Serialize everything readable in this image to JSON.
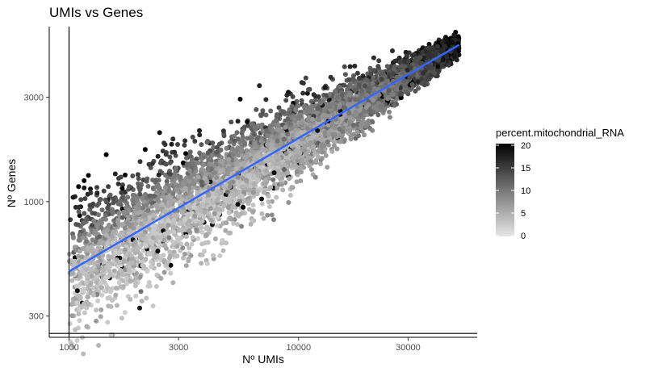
{
  "chart_data": {
    "type": "scatter",
    "title": "UMIs vs Genes",
    "xlabel": "Nº UMIs",
    "ylabel": "Nº Genes",
    "x_scale": "log10",
    "y_scale": "log10",
    "xlim": [
      820,
      60000
    ],
    "ylim": [
      240,
      6300
    ],
    "x_ticks": [
      1000,
      3000,
      10000,
      30000
    ],
    "x_tick_labels": [
      "1000",
      "3000",
      "10000",
      "30000"
    ],
    "y_ticks": [
      300,
      1000,
      3000
    ],
    "y_tick_labels": [
      "300",
      "1000",
      "3000"
    ],
    "vline_x": 1000,
    "hline_y": 250,
    "trend_line": {
      "color": "#3366ff",
      "x": [
        1000,
        50000
      ],
      "y": [
        480,
        5200
      ]
    },
    "points_description": {
      "n_points_approx": 6000,
      "x_range": [
        1000,
        50000
      ],
      "color_by": "percent.mitochondrial_RNA",
      "color_range": [
        0,
        20
      ]
    },
    "legend": {
      "title": "percent.mitochondrial_RNA",
      "ticks": [
        20,
        15,
        10,
        5,
        0
      ],
      "tick_labels": [
        "20",
        "15",
        "10",
        "5",
        "0"
      ],
      "color_low": "#e6e6e6",
      "color_high": "#000000",
      "position": "right"
    },
    "grid": false
  }
}
